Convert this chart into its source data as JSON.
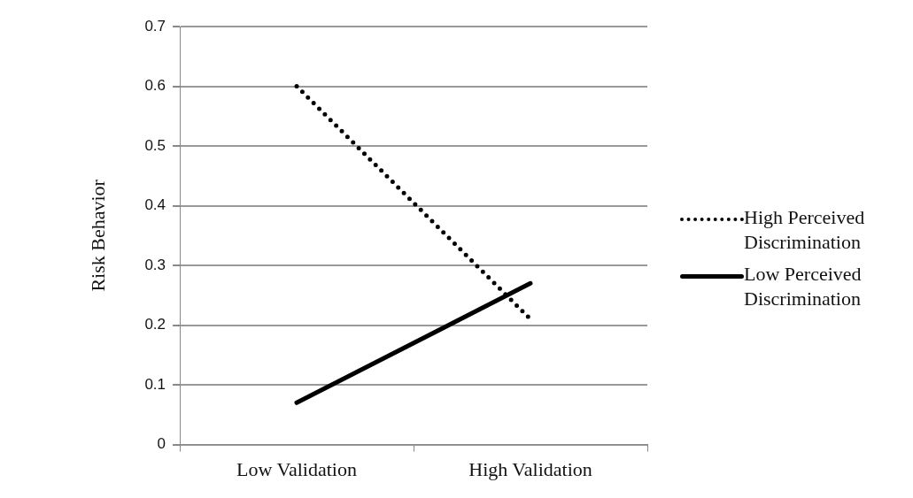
{
  "chart_data": {
    "type": "line",
    "ylabel": "Risk Behavior",
    "categories": [
      "Low Validation",
      "High Validation"
    ],
    "series": [
      {
        "name": "High Perceived Discrimination",
        "color": "#000000",
        "values": [
          0.6,
          0.21
        ],
        "line_style": "dotted"
      },
      {
        "name": "Low Perceived Discrimination",
        "color": "#000000",
        "values": [
          0.07,
          0.27
        ],
        "line_style": "solid"
      }
    ],
    "ylim": [
      0,
      0.7
    ],
    "yticks": [
      0,
      0.1,
      0.2,
      0.3,
      0.4,
      0.5,
      0.6,
      0.7
    ],
    "grid": "y",
    "legend": "right",
    "marker": "none"
  }
}
